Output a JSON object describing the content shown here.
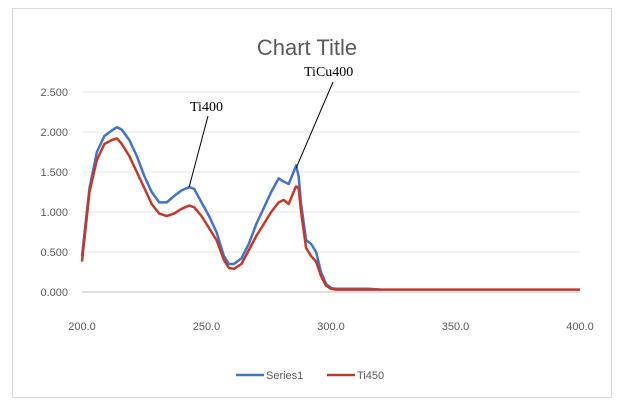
{
  "chart_data": {
    "type": "line",
    "title": "Chart Title",
    "xlabel": "",
    "ylabel": "",
    "xlim": [
      200,
      400
    ],
    "ylim": [
      0,
      2.5
    ],
    "x_ticks": [
      "200.0",
      "250.0",
      "300.0",
      "350.0",
      "400.0"
    ],
    "y_ticks": [
      "0.000",
      "0.500",
      "1.000",
      "1.500",
      "2.000",
      "2.500"
    ],
    "grid": "horizontal",
    "legend_position": "bottom",
    "annotations": [
      {
        "text": "Ti400",
        "points_to": {
          "x": 243,
          "y": 1.31
        }
      },
      {
        "text": "TiCu400",
        "points_to": {
          "x": 286,
          "y": 1.55
        }
      }
    ],
    "series": [
      {
        "name": "Series1",
        "color": "#4472c4",
        "x": [
          200,
          203,
          206,
          209,
          212,
          214,
          216,
          219,
          222,
          225,
          228,
          231,
          234,
          237,
          240,
          243,
          245,
          248,
          251,
          254,
          257,
          259,
          261,
          264,
          267,
          270,
          273,
          276,
          279,
          281,
          283,
          285,
          286,
          287,
          288,
          290,
          292,
          294,
          296,
          298,
          300,
          302,
          305,
          310,
          315,
          320
        ],
        "y": [
          0.45,
          1.3,
          1.75,
          1.95,
          2.02,
          2.06,
          2.03,
          1.9,
          1.7,
          1.45,
          1.25,
          1.12,
          1.12,
          1.2,
          1.27,
          1.31,
          1.29,
          1.12,
          0.95,
          0.75,
          0.45,
          0.35,
          0.35,
          0.42,
          0.6,
          0.85,
          1.05,
          1.25,
          1.42,
          1.38,
          1.35,
          1.5,
          1.58,
          1.45,
          1.1,
          0.65,
          0.6,
          0.5,
          0.25,
          0.1,
          0.05,
          0.04,
          0.04,
          0.04,
          0.04,
          0.03
        ]
      },
      {
        "name": "Ti450",
        "color": "#c0392b",
        "x": [
          200,
          203,
          206,
          209,
          212,
          214,
          216,
          219,
          222,
          225,
          228,
          231,
          234,
          237,
          240,
          243,
          245,
          248,
          251,
          254,
          257,
          259,
          261,
          264,
          267,
          270,
          273,
          276,
          279,
          281,
          283,
          285,
          286,
          287,
          288,
          290,
          292,
          294,
          296,
          298,
          300,
          302,
          305,
          310,
          320,
          340,
          360,
          380,
          400
        ],
        "y": [
          0.38,
          1.25,
          1.65,
          1.85,
          1.9,
          1.92,
          1.85,
          1.7,
          1.5,
          1.3,
          1.1,
          0.98,
          0.95,
          0.98,
          1.04,
          1.08,
          1.06,
          0.95,
          0.8,
          0.65,
          0.4,
          0.3,
          0.29,
          0.35,
          0.52,
          0.7,
          0.85,
          1.0,
          1.12,
          1.15,
          1.1,
          1.25,
          1.32,
          1.3,
          1.0,
          0.55,
          0.45,
          0.38,
          0.2,
          0.08,
          0.04,
          0.03,
          0.03,
          0.03,
          0.03,
          0.03,
          0.03,
          0.03,
          0.03
        ]
      }
    ]
  }
}
